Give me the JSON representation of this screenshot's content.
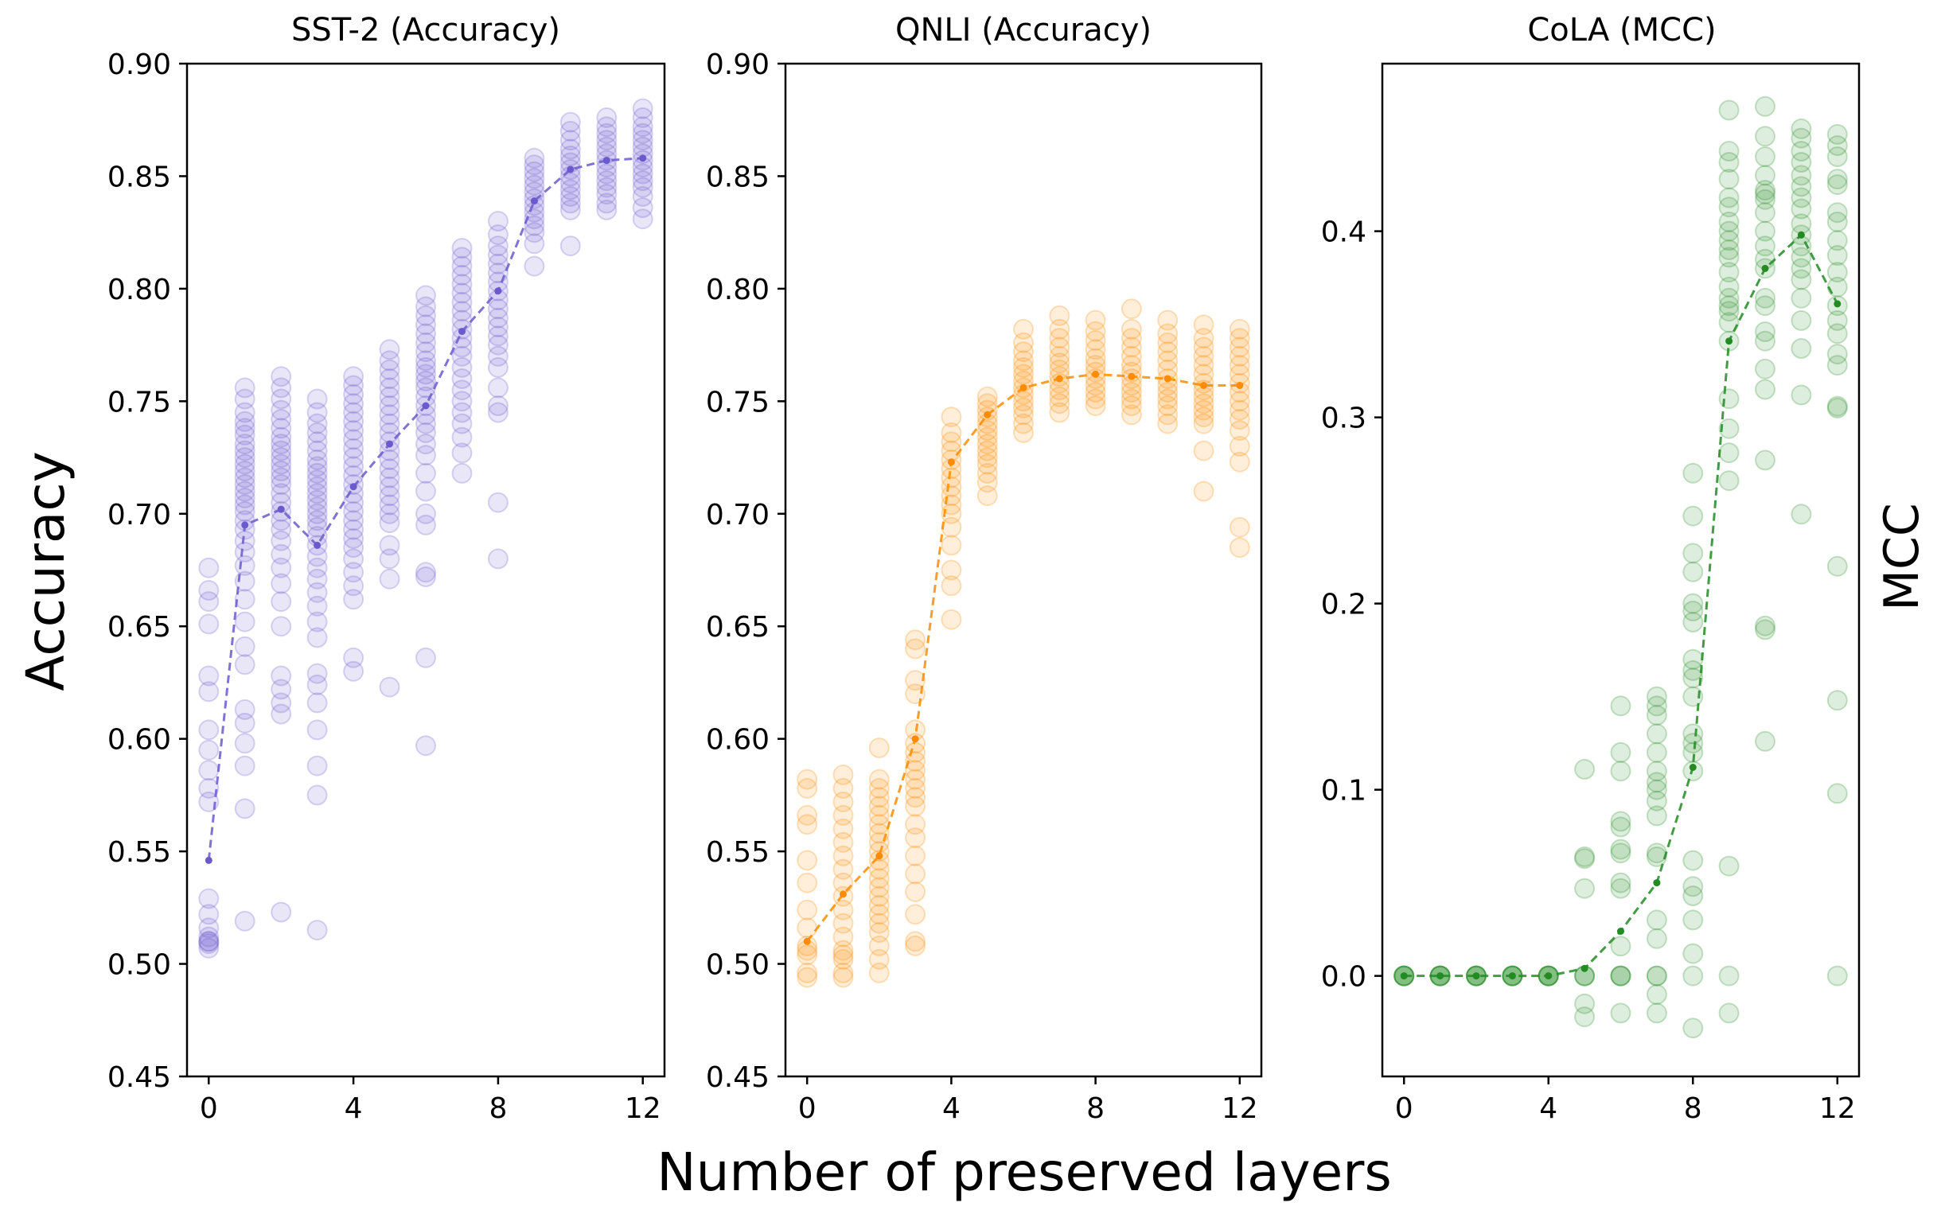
{
  "figure": {
    "xlabel": "Number of preserved layers",
    "left_ylabel": "Accuracy",
    "right_ylabel": "MCC"
  },
  "chart_data": [
    {
      "type": "scatter",
      "title": "SST-2 (Accuracy)",
      "ylabel": "Accuracy",
      "xlabel": "Number of preserved layers",
      "color": "#6a5acd",
      "xlim": [
        -0.6,
        12.6
      ],
      "ylim": [
        0.45,
        0.9
      ],
      "xticks": [
        0,
        4,
        8,
        12
      ],
      "yticks": [
        0.45,
        0.5,
        0.55,
        0.6,
        0.65,
        0.7,
        0.75,
        0.8,
        0.85,
        0.9
      ],
      "ytick_labels": [
        "0.45",
        "0.50",
        "0.55",
        "0.60",
        "0.65",
        "0.70",
        "0.75",
        "0.80",
        "0.85",
        "0.90"
      ],
      "grid": false,
      "mean_line": {
        "x": [
          0,
          1,
          2,
          3,
          4,
          5,
          6,
          7,
          8,
          9,
          10,
          11,
          12
        ],
        "y": [
          0.546,
          0.695,
          0.702,
          0.686,
          0.712,
          0.731,
          0.748,
          0.781,
          0.799,
          0.839,
          0.853,
          0.857,
          0.858
        ]
      },
      "runs": [
        {
          "x": 0,
          "y": [
            0.676,
            0.666,
            0.661,
            0.651,
            0.628,
            0.621,
            0.604,
            0.595,
            0.586,
            0.578,
            0.572,
            0.529,
            0.522,
            0.516,
            0.512,
            0.51,
            0.51,
            0.509,
            0.507
          ]
        },
        {
          "x": 1,
          "y": [
            0.756,
            0.751,
            0.745,
            0.741,
            0.738,
            0.735,
            0.731,
            0.728,
            0.725,
            0.722,
            0.719,
            0.716,
            0.713,
            0.71,
            0.707,
            0.704,
            0.701,
            0.697,
            0.693,
            0.688,
            0.683,
            0.677,
            0.67,
            0.662,
            0.652,
            0.641,
            0.633,
            0.613,
            0.607,
            0.598,
            0.588,
            0.569,
            0.519
          ]
        },
        {
          "x": 2,
          "y": [
            0.761,
            0.756,
            0.751,
            0.746,
            0.742,
            0.738,
            0.734,
            0.731,
            0.728,
            0.725,
            0.722,
            0.719,
            0.716,
            0.713,
            0.709,
            0.705,
            0.701,
            0.697,
            0.693,
            0.688,
            0.682,
            0.676,
            0.669,
            0.661,
            0.65,
            0.628,
            0.622,
            0.616,
            0.611,
            0.523
          ]
        },
        {
          "x": 3,
          "y": [
            0.751,
            0.745,
            0.74,
            0.736,
            0.732,
            0.728,
            0.724,
            0.721,
            0.718,
            0.715,
            0.712,
            0.709,
            0.706,
            0.703,
            0.7,
            0.697,
            0.694,
            0.69,
            0.686,
            0.681,
            0.676,
            0.671,
            0.665,
            0.659,
            0.652,
            0.645,
            0.629,
            0.624,
            0.616,
            0.604,
            0.588,
            0.575,
            0.515
          ]
        },
        {
          "x": 4,
          "y": [
            0.761,
            0.757,
            0.753,
            0.749,
            0.745,
            0.741,
            0.737,
            0.733,
            0.729,
            0.725,
            0.721,
            0.717,
            0.713,
            0.709,
            0.705,
            0.701,
            0.697,
            0.693,
            0.689,
            0.685,
            0.68,
            0.674,
            0.668,
            0.662,
            0.636,
            0.63
          ]
        },
        {
          "x": 5,
          "y": [
            0.773,
            0.768,
            0.764,
            0.76,
            0.756,
            0.752,
            0.748,
            0.744,
            0.74,
            0.736,
            0.732,
            0.728,
            0.724,
            0.72,
            0.716,
            0.712,
            0.708,
            0.704,
            0.7,
            0.696,
            0.686,
            0.68,
            0.671,
            0.623
          ]
        },
        {
          "x": 6,
          "y": [
            0.797,
            0.792,
            0.788,
            0.784,
            0.78,
            0.776,
            0.772,
            0.768,
            0.765,
            0.762,
            0.759,
            0.756,
            0.752,
            0.748,
            0.744,
            0.74,
            0.736,
            0.731,
            0.726,
            0.718,
            0.71,
            0.7,
            0.695,
            0.674,
            0.672,
            0.636,
            0.597
          ]
        },
        {
          "x": 7,
          "y": [
            0.818,
            0.814,
            0.81,
            0.806,
            0.802,
            0.798,
            0.794,
            0.79,
            0.786,
            0.782,
            0.778,
            0.774,
            0.77,
            0.765,
            0.76,
            0.755,
            0.75,
            0.745,
            0.74,
            0.734,
            0.727,
            0.718
          ]
        },
        {
          "x": 8,
          "y": [
            0.83,
            0.824,
            0.819,
            0.815,
            0.811,
            0.807,
            0.803,
            0.799,
            0.795,
            0.791,
            0.787,
            0.783,
            0.779,
            0.775,
            0.77,
            0.765,
            0.756,
            0.748,
            0.745,
            0.705,
            0.68
          ]
        },
        {
          "x": 9,
          "y": [
            0.858,
            0.855,
            0.852,
            0.849,
            0.846,
            0.843,
            0.84,
            0.837,
            0.834,
            0.831,
            0.828,
            0.825,
            0.82,
            0.81
          ]
        },
        {
          "x": 10,
          "y": [
            0.874,
            0.87,
            0.866,
            0.862,
            0.859,
            0.856,
            0.853,
            0.85,
            0.847,
            0.844,
            0.841,
            0.838,
            0.835,
            0.819
          ]
        },
        {
          "x": 11,
          "y": [
            0.876,
            0.872,
            0.869,
            0.866,
            0.863,
            0.86,
            0.857,
            0.854,
            0.851,
            0.848,
            0.845,
            0.842,
            0.838,
            0.835
          ]
        },
        {
          "x": 12,
          "y": [
            0.88,
            0.876,
            0.872,
            0.869,
            0.866,
            0.863,
            0.86,
            0.857,
            0.854,
            0.851,
            0.848,
            0.845,
            0.841,
            0.836,
            0.831
          ]
        }
      ]
    },
    {
      "type": "scatter",
      "title": "QNLI (Accuracy)",
      "ylabel": "Accuracy",
      "xlabel": "Number of preserved layers",
      "color": "#ff8c00",
      "xlim": [
        -0.6,
        12.6
      ],
      "ylim": [
        0.45,
        0.9
      ],
      "xticks": [
        0,
        4,
        8,
        12
      ],
      "yticks": [
        0.45,
        0.5,
        0.55,
        0.6,
        0.65,
        0.7,
        0.75,
        0.8,
        0.85,
        0.9
      ],
      "ytick_labels": [
        "0.45",
        "0.50",
        "0.55",
        "0.60",
        "0.65",
        "0.70",
        "0.75",
        "0.80",
        "0.85",
        "0.90"
      ],
      "grid": false,
      "mean_line": {
        "x": [
          0,
          1,
          2,
          3,
          4,
          5,
          6,
          7,
          8,
          9,
          10,
          11,
          12
        ],
        "y": [
          0.51,
          0.531,
          0.548,
          0.6,
          0.723,
          0.744,
          0.756,
          0.76,
          0.762,
          0.761,
          0.76,
          0.757,
          0.757
        ]
      },
      "runs": [
        {
          "x": 0,
          "y": [
            0.582,
            0.578,
            0.566,
            0.562,
            0.546,
            0.536,
            0.524,
            0.516,
            0.508,
            0.506,
            0.504,
            0.496,
            0.494
          ]
        },
        {
          "x": 1,
          "y": [
            0.584,
            0.578,
            0.572,
            0.566,
            0.56,
            0.554,
            0.548,
            0.542,
            0.536,
            0.53,
            0.524,
            0.518,
            0.512,
            0.506,
            0.504,
            0.502,
            0.496,
            0.494
          ]
        },
        {
          "x": 2,
          "y": [
            0.596,
            0.582,
            0.578,
            0.574,
            0.57,
            0.566,
            0.562,
            0.558,
            0.554,
            0.55,
            0.546,
            0.542,
            0.538,
            0.534,
            0.53,
            0.526,
            0.522,
            0.518,
            0.514,
            0.508,
            0.502,
            0.496
          ]
        },
        {
          "x": 3,
          "y": [
            0.644,
            0.64,
            0.626,
            0.62,
            0.604,
            0.598,
            0.594,
            0.59,
            0.586,
            0.582,
            0.578,
            0.574,
            0.57,
            0.562,
            0.556,
            0.548,
            0.54,
            0.532,
            0.522,
            0.51,
            0.508
          ]
        },
        {
          "x": 4,
          "y": [
            0.743,
            0.736,
            0.732,
            0.728,
            0.724,
            0.72,
            0.716,
            0.712,
            0.708,
            0.704,
            0.7,
            0.694,
            0.686,
            0.675,
            0.668,
            0.653
          ]
        },
        {
          "x": 5,
          "y": [
            0.752,
            0.749,
            0.746,
            0.743,
            0.74,
            0.737,
            0.734,
            0.731,
            0.728,
            0.725,
            0.722,
            0.718,
            0.714,
            0.708
          ]
        },
        {
          "x": 6,
          "y": [
            0.782,
            0.776,
            0.772,
            0.768,
            0.765,
            0.762,
            0.759,
            0.756,
            0.753,
            0.75,
            0.747,
            0.744,
            0.74,
            0.736
          ]
        },
        {
          "x": 7,
          "y": [
            0.788,
            0.782,
            0.778,
            0.774,
            0.77,
            0.767,
            0.764,
            0.761,
            0.758,
            0.755,
            0.752,
            0.749,
            0.745
          ]
        },
        {
          "x": 8,
          "y": [
            0.786,
            0.781,
            0.777,
            0.773,
            0.769,
            0.766,
            0.763,
            0.76,
            0.757,
            0.754,
            0.751,
            0.748
          ]
        },
        {
          "x": 9,
          "y": [
            0.791,
            0.782,
            0.778,
            0.774,
            0.77,
            0.766,
            0.763,
            0.76,
            0.757,
            0.754,
            0.751,
            0.748,
            0.744
          ]
        },
        {
          "x": 10,
          "y": [
            0.786,
            0.78,
            0.776,
            0.772,
            0.768,
            0.764,
            0.76,
            0.757,
            0.754,
            0.751,
            0.748,
            0.744,
            0.74
          ]
        },
        {
          "x": 11,
          "y": [
            0.784,
            0.778,
            0.774,
            0.77,
            0.766,
            0.762,
            0.758,
            0.755,
            0.752,
            0.749,
            0.746,
            0.743,
            0.74,
            0.728,
            0.71
          ]
        },
        {
          "x": 12,
          "y": [
            0.782,
            0.778,
            0.774,
            0.77,
            0.766,
            0.762,
            0.758,
            0.754,
            0.75,
            0.746,
            0.742,
            0.737,
            0.73,
            0.723,
            0.694,
            0.685
          ]
        }
      ]
    },
    {
      "type": "scatter",
      "title": "CoLA (MCC)",
      "ylabel": "MCC",
      "xlabel": "Number of preserved layers",
      "color": "#228b22",
      "xlim": [
        -0.6,
        12.6
      ],
      "ylim": [
        -0.054,
        0.49
      ],
      "xticks": [
        0,
        4,
        8,
        12
      ],
      "yticks": [
        0.0,
        0.1,
        0.2,
        0.3,
        0.4
      ],
      "ytick_labels": [
        "0.0",
        "0.1",
        "0.2",
        "0.3",
        "0.4"
      ],
      "grid": false,
      "mean_line": {
        "x": [
          0,
          1,
          2,
          3,
          4,
          5,
          6,
          7,
          8,
          9,
          10,
          11,
          12
        ],
        "y": [
          0.0,
          0.0,
          0.0,
          0.0,
          0.0,
          0.004,
          0.024,
          0.05,
          0.112,
          0.341,
          0.38,
          0.398,
          0.361
        ]
      },
      "runs": [
        {
          "x": 0,
          "y": [
            0.0,
            0.0,
            0.0,
            0.0,
            0.0
          ]
        },
        {
          "x": 1,
          "y": [
            0.0,
            0.0,
            0.0,
            0.0,
            0.0
          ]
        },
        {
          "x": 2,
          "y": [
            0.0,
            0.0,
            0.0,
            0.0,
            0.0
          ]
        },
        {
          "x": 3,
          "y": [
            0.0,
            0.0,
            0.0,
            0.0,
            0.0
          ]
        },
        {
          "x": 4,
          "y": [
            0.0,
            0.0,
            0.0,
            0.0,
            0.0
          ]
        },
        {
          "x": 5,
          "y": [
            0.111,
            0.064,
            0.063,
            0.047,
            0.0,
            0.0,
            0.0,
            -0.015,
            -0.022
          ]
        },
        {
          "x": 6,
          "y": [
            0.145,
            0.12,
            0.11,
            0.083,
            0.08,
            0.068,
            0.066,
            0.05,
            0.047,
            0.016,
            0.0,
            0.0,
            0.0,
            -0.02
          ]
        },
        {
          "x": 7,
          "y": [
            0.15,
            0.145,
            0.14,
            0.13,
            0.12,
            0.11,
            0.104,
            0.1,
            0.094,
            0.086,
            0.066,
            0.064,
            0.03,
            0.02,
            0.0,
            0.0,
            -0.01,
            -0.02
          ]
        },
        {
          "x": 8,
          "y": [
            0.27,
            0.247,
            0.227,
            0.217,
            0.2,
            0.196,
            0.19,
            0.17,
            0.164,
            0.16,
            0.15,
            0.13,
            0.125,
            0.12,
            0.11,
            0.062,
            0.048,
            0.043,
            0.03,
            0.012,
            0.0,
            -0.028
          ]
        },
        {
          "x": 9,
          "y": [
            0.465,
            0.443,
            0.437,
            0.428,
            0.418,
            0.413,
            0.405,
            0.4,
            0.395,
            0.39,
            0.386,
            0.378,
            0.37,
            0.364,
            0.36,
            0.357,
            0.351,
            0.341,
            0.31,
            0.294,
            0.281,
            0.266,
            0.059,
            0.0,
            -0.02
          ]
        },
        {
          "x": 10,
          "y": [
            0.467,
            0.451,
            0.44,
            0.43,
            0.422,
            0.42,
            0.417,
            0.41,
            0.4,
            0.392,
            0.385,
            0.38,
            0.364,
            0.36,
            0.346,
            0.341,
            0.326,
            0.315,
            0.277,
            0.188,
            0.186,
            0.126
          ]
        },
        {
          "x": 11,
          "y": [
            0.455,
            0.45,
            0.443,
            0.437,
            0.43,
            0.424,
            0.418,
            0.412,
            0.404,
            0.398,
            0.392,
            0.386,
            0.38,
            0.374,
            0.364,
            0.352,
            0.337,
            0.312,
            0.248
          ]
        },
        {
          "x": 12,
          "y": [
            0.452,
            0.446,
            0.44,
            0.428,
            0.425,
            0.41,
            0.405,
            0.395,
            0.387,
            0.378,
            0.37,
            0.36,
            0.352,
            0.345,
            0.334,
            0.328,
            0.306,
            0.305,
            0.22,
            0.148,
            0.098,
            0.0
          ]
        }
      ]
    }
  ]
}
